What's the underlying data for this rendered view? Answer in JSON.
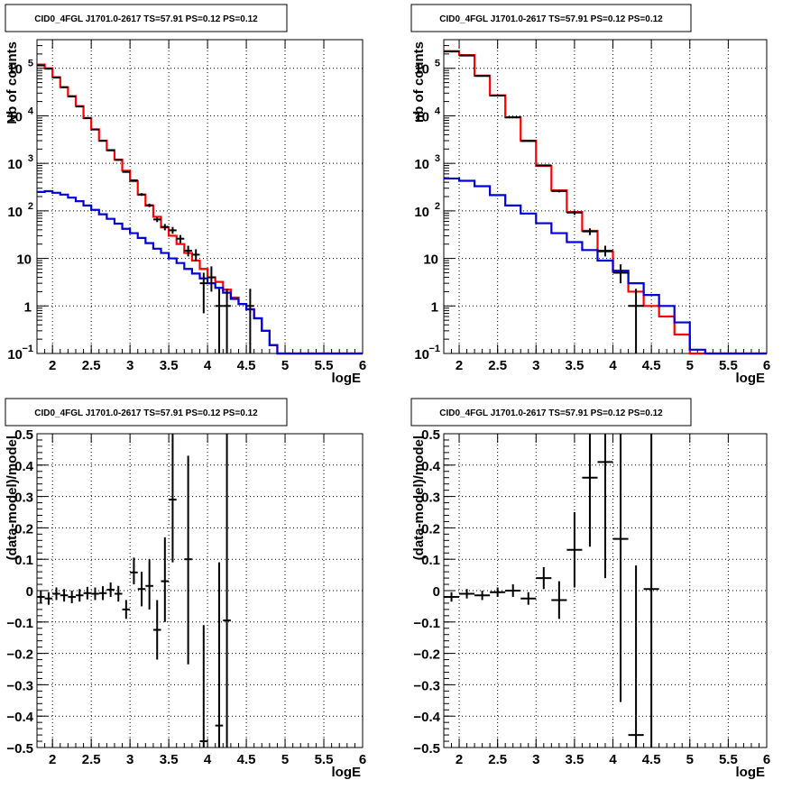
{
  "chart_data": [
    {
      "type": "line",
      "title": "CID0_4FGL J1701.0-2617 TS=57.91 PS=0.12 PS=0.12",
      "xlabel": "logE",
      "ylabel": "Nb of counts",
      "y_scale": "log",
      "xlim": [
        1.8,
        6.0
      ],
      "ylim": [
        0.1,
        400000
      ],
      "grid": true,
      "x_ticks": [
        "2",
        "2.5",
        "3",
        "3.5",
        "4",
        "4.5",
        "5",
        "5.5",
        "6"
      ],
      "y_ticks": [
        {
          "v": 0.1,
          "label": "10",
          "sup": "−1"
        },
        {
          "v": 1,
          "label": "1",
          "sup": ""
        },
        {
          "v": 10,
          "label": "10",
          "sup": ""
        },
        {
          "v": 100,
          "label": "10",
          "sup": "2"
        },
        {
          "v": 1000,
          "label": "10",
          "sup": "3"
        },
        {
          "v": 10000,
          "label": "10",
          "sup": "4"
        },
        {
          "v": 100000,
          "label": "10",
          "sup": "5"
        }
      ],
      "series": [
        {
          "color": "#ff0000",
          "style": "step",
          "edges": [
            1.8,
            1.9,
            2.0,
            2.1,
            2.2,
            2.3,
            2.4,
            2.5,
            2.6,
            2.7,
            2.8,
            2.9,
            3.0,
            3.1,
            3.2,
            3.3,
            3.4,
            3.5,
            3.6,
            3.7,
            3.8,
            3.9,
            4.0,
            4.1,
            4.2,
            4.3,
            4.4,
            4.5,
            4.6,
            4.7,
            4.8,
            4.9,
            5.0,
            5.1,
            5.2,
            5.3,
            5.4,
            5.5,
            5.6,
            5.7,
            5.8,
            5.9,
            6.0
          ],
          "values": [
            120000,
            100000,
            65000,
            40000,
            26000,
            16000,
            9000,
            5200,
            3000,
            1900,
            1200,
            700,
            420,
            220,
            130,
            75,
            45,
            30,
            20,
            13,
            9,
            6,
            4,
            3.2,
            2.2,
            1.5,
            1.1,
            0.85,
            0.55,
            0.3,
            0.15,
            0.1,
            0.1,
            0.1,
            0.1,
            0.1,
            0.1,
            0.1,
            0.1,
            0.1,
            0.1,
            0.1
          ]
        },
        {
          "color": "#0000d8",
          "style": "step",
          "edges": [
            1.8,
            1.9,
            2.0,
            2.1,
            2.2,
            2.3,
            2.4,
            2.5,
            2.6,
            2.7,
            2.8,
            2.9,
            3.0,
            3.1,
            3.2,
            3.3,
            3.4,
            3.5,
            3.6,
            3.7,
            3.8,
            3.9,
            4.0,
            4.1,
            4.2,
            4.3,
            4.4,
            4.5,
            4.6,
            4.7,
            4.8,
            4.9,
            5.0,
            5.1,
            5.2,
            5.3,
            5.4,
            5.5,
            5.6,
            5.7,
            5.8,
            5.9,
            6.0
          ],
          "values": [
            250,
            260,
            240,
            220,
            190,
            160,
            130,
            105,
            85,
            68,
            54,
            42,
            34,
            27,
            21,
            16,
            13,
            10,
            8,
            6,
            4.8,
            3.8,
            3,
            2.4,
            1.9,
            1.4,
            1.1,
            0.85,
            0.55,
            0.3,
            0.15,
            0.1,
            0.1,
            0.1,
            0.1,
            0.1,
            0.1,
            0.1,
            0.1,
            0.1,
            0.1,
            0.1
          ]
        }
      ],
      "points": [
        {
          "x": 1.85,
          "y": 115000,
          "ylo": 114500,
          "yhi": 115500,
          "xe": 0.05
        },
        {
          "x": 1.95,
          "y": 98000,
          "ylo": 97500,
          "yhi": 98500,
          "xe": 0.05
        },
        {
          "x": 2.05,
          "y": 64000,
          "ylo": 63600,
          "yhi": 64400,
          "xe": 0.05
        },
        {
          "x": 2.15,
          "y": 40000,
          "ylo": 39700,
          "yhi": 40300,
          "xe": 0.05
        },
        {
          "x": 2.25,
          "y": 25500,
          "ylo": 25300,
          "yhi": 25700,
          "xe": 0.05
        },
        {
          "x": 2.35,
          "y": 15700,
          "ylo": 15550,
          "yhi": 15850,
          "xe": 0.05
        },
        {
          "x": 2.45,
          "y": 8900,
          "ylo": 8800,
          "yhi": 9000,
          "xe": 0.05
        },
        {
          "x": 2.55,
          "y": 5150,
          "ylo": 5080,
          "yhi": 5220,
          "xe": 0.05
        },
        {
          "x": 2.65,
          "y": 2980,
          "ylo": 2930,
          "yhi": 3030,
          "xe": 0.05
        },
        {
          "x": 2.75,
          "y": 1880,
          "ylo": 1840,
          "yhi": 1920,
          "xe": 0.05
        },
        {
          "x": 2.85,
          "y": 1180,
          "ylo": 1150,
          "yhi": 1210,
          "xe": 0.05
        },
        {
          "x": 2.95,
          "y": 660,
          "ylo": 640,
          "yhi": 680,
          "xe": 0.05
        },
        {
          "x": 3.05,
          "y": 440,
          "ylo": 420,
          "yhi": 460,
          "xe": 0.05
        },
        {
          "x": 3.15,
          "y": 221,
          "ylo": 207,
          "yhi": 236,
          "xe": 0.05
        },
        {
          "x": 3.25,
          "y": 131,
          "ylo": 120,
          "yhi": 142,
          "xe": 0.05
        },
        {
          "x": 3.35,
          "y": 66,
          "ylo": 58,
          "yhi": 74,
          "xe": 0.05
        },
        {
          "x": 3.45,
          "y": 46,
          "ylo": 39,
          "yhi": 53,
          "xe": 0.05
        },
        {
          "x": 3.55,
          "y": 39,
          "ylo": 33,
          "yhi": 46,
          "xe": 0.05
        },
        {
          "x": 3.65,
          "y": 26,
          "ylo": 21,
          "yhi": 31,
          "xe": 0.05
        },
        {
          "x": 3.75,
          "y": 14.5,
          "ylo": 11,
          "yhi": 18.5,
          "xe": 0.05
        },
        {
          "x": 3.85,
          "y": 12,
          "ylo": 8.8,
          "yhi": 15.6,
          "xe": 0.05
        },
        {
          "x": 3.95,
          "y": 3,
          "ylo": 0.7,
          "yhi": 5,
          "xe": 0.05
        },
        {
          "x": 4.05,
          "y": 4,
          "ylo": 2,
          "yhi": 6.8,
          "xe": 0.05
        },
        {
          "x": 4.15,
          "y": 1,
          "ylo": 0.1,
          "yhi": 2.3,
          "xe": 0.05
        },
        {
          "x": 4.25,
          "y": 1,
          "ylo": 0.1,
          "yhi": 2.3,
          "xe": 0.05
        },
        {
          "x": 4.55,
          "y": 1,
          "ylo": 0.1,
          "yhi": 2.3,
          "xe": 0.05
        }
      ]
    },
    {
      "type": "line",
      "title": "CID0_4FGL J1701.0-2617 TS=57.91 PS=0.12 PS=0.12",
      "xlabel": "logE",
      "ylabel": "nb of counts",
      "y_scale": "log",
      "xlim": [
        1.8,
        6.0
      ],
      "ylim": [
        0.1,
        400000
      ],
      "grid": true,
      "x_ticks": [
        "2",
        "2.5",
        "3",
        "3.5",
        "4",
        "4.5",
        "5",
        "5.5",
        "6"
      ],
      "y_ticks": [
        {
          "v": 0.1,
          "label": "10",
          "sup": "−1"
        },
        {
          "v": 1,
          "label": "1",
          "sup": ""
        },
        {
          "v": 10,
          "label": "10",
          "sup": ""
        },
        {
          "v": 100,
          "label": "10",
          "sup": "2"
        },
        {
          "v": 1000,
          "label": "10",
          "sup": "3"
        },
        {
          "v": 10000,
          "label": "10",
          "sup": "4"
        },
        {
          "v": 100000,
          "label": "10",
          "sup": "5"
        }
      ],
      "series": [
        {
          "color": "#ff0000",
          "style": "step",
          "edges": [
            1.8,
            2.0,
            2.2,
            2.4,
            2.6,
            2.8,
            3.0,
            3.2,
            3.4,
            3.6,
            3.8,
            4.0,
            4.2,
            4.4,
            4.6,
            4.8,
            5.0,
            5.2,
            5.4,
            5.6,
            5.8,
            6.0
          ],
          "values": [
            230000,
            190000,
            70000,
            27000,
            9300,
            3000,
            880,
            270,
            95,
            38,
            14,
            5.2,
            2,
            1,
            0.6,
            0.25,
            0.1,
            0.1,
            0.1,
            0.1,
            0.1
          ]
        },
        {
          "color": "#0000d8",
          "style": "step",
          "edges": [
            1.8,
            2.0,
            2.2,
            2.4,
            2.6,
            2.8,
            3.0,
            3.2,
            3.4,
            3.6,
            3.8,
            4.0,
            4.2,
            4.4,
            4.6,
            4.8,
            5.0,
            5.2,
            5.4,
            5.6,
            5.8,
            6.0
          ],
          "values": [
            480,
            430,
            330,
            215,
            130,
            88,
            55,
            34,
            22,
            15,
            9,
            5.5,
            3,
            1.7,
            1,
            0.45,
            0.12,
            0.1,
            0.1,
            0.1,
            0.1
          ]
        }
      ],
      "points": [
        {
          "x": 1.9,
          "y": 225000,
          "ylo": 224000,
          "yhi": 226000,
          "xe": 0.1
        },
        {
          "x": 2.1,
          "y": 185000,
          "ylo": 184000,
          "yhi": 186000,
          "xe": 0.1
        },
        {
          "x": 2.3,
          "y": 69000,
          "ylo": 68500,
          "yhi": 69500,
          "xe": 0.1
        },
        {
          "x": 2.5,
          "y": 26600,
          "ylo": 26400,
          "yhi": 26800,
          "xe": 0.1
        },
        {
          "x": 2.7,
          "y": 9300,
          "ylo": 9200,
          "yhi": 9400,
          "xe": 0.1
        },
        {
          "x": 2.9,
          "y": 2950,
          "ylo": 2900,
          "yhi": 3000,
          "xe": 0.1
        },
        {
          "x": 3.1,
          "y": 910,
          "ylo": 880,
          "yhi": 940,
          "xe": 0.1
        },
        {
          "x": 3.3,
          "y": 262,
          "ylo": 246,
          "yhi": 278,
          "xe": 0.1
        },
        {
          "x": 3.5,
          "y": 92,
          "ylo": 82,
          "yhi": 102,
          "xe": 0.1
        },
        {
          "x": 3.7,
          "y": 37,
          "ylo": 31,
          "yhi": 43,
          "xe": 0.1
        },
        {
          "x": 3.9,
          "y": 14.5,
          "ylo": 11,
          "yhi": 18.5,
          "xe": 0.1
        },
        {
          "x": 4.1,
          "y": 5,
          "ylo": 3,
          "yhi": 7.5,
          "xe": 0.1
        },
        {
          "x": 4.3,
          "y": 1,
          "ylo": 0.1,
          "yhi": 2.3,
          "xe": 0.1
        }
      ]
    },
    {
      "type": "scatter",
      "title": "CID0_4FGL J1701.0-2617 TS=57.91 PS=0.12 PS=0.12",
      "xlabel": "logE",
      "ylabel": "(data-model)/model",
      "xlim": [
        1.8,
        6.0
      ],
      "ylim": [
        -0.5,
        0.5
      ],
      "grid": true,
      "x_ticks": [
        "2",
        "2.5",
        "3",
        "3.5",
        "4",
        "4.5",
        "5",
        "5.5",
        "6"
      ],
      "y_ticks": [
        "−0.5",
        "−0.4",
        "−0.3",
        "−0.2",
        "−0.1",
        "0",
        "0.1",
        "0.2",
        "0.3",
        "0.4",
        "0.5"
      ],
      "points": [
        {
          "x": 1.85,
          "y": -0.02,
          "ylo": -0.04,
          "yhi": 0.0,
          "xe": 0.05
        },
        {
          "x": 1.95,
          "y": -0.025,
          "ylo": -0.045,
          "yhi": -0.005,
          "xe": 0.05
        },
        {
          "x": 2.05,
          "y": -0.01,
          "ylo": -0.03,
          "yhi": 0.01,
          "xe": 0.05
        },
        {
          "x": 2.15,
          "y": -0.015,
          "ylo": -0.035,
          "yhi": 0.005,
          "xe": 0.05
        },
        {
          "x": 2.25,
          "y": -0.02,
          "ylo": -0.04,
          "yhi": 0.0,
          "xe": 0.05
        },
        {
          "x": 2.35,
          "y": -0.015,
          "ylo": -0.035,
          "yhi": 0.005,
          "xe": 0.05
        },
        {
          "x": 2.45,
          "y": -0.008,
          "ylo": -0.028,
          "yhi": 0.012,
          "xe": 0.05
        },
        {
          "x": 2.55,
          "y": -0.01,
          "ylo": -0.03,
          "yhi": 0.01,
          "xe": 0.05
        },
        {
          "x": 2.65,
          "y": -0.008,
          "ylo": -0.03,
          "yhi": 0.014,
          "xe": 0.05
        },
        {
          "x": 2.75,
          "y": 0.003,
          "ylo": -0.02,
          "yhi": 0.026,
          "xe": 0.05
        },
        {
          "x": 2.85,
          "y": -0.01,
          "ylo": -0.035,
          "yhi": 0.015,
          "xe": 0.05
        },
        {
          "x": 2.95,
          "y": -0.06,
          "ylo": -0.09,
          "yhi": -0.03,
          "xe": 0.05
        },
        {
          "x": 3.05,
          "y": 0.058,
          "ylo": 0.02,
          "yhi": 0.105,
          "xe": 0.05
        },
        {
          "x": 3.15,
          "y": 0.005,
          "ylo": -0.05,
          "yhi": 0.06,
          "xe": 0.05
        },
        {
          "x": 3.25,
          "y": 0.015,
          "ylo": -0.06,
          "yhi": 0.1,
          "xe": 0.05
        },
        {
          "x": 3.35,
          "y": -0.125,
          "ylo": -0.22,
          "yhi": -0.03,
          "xe": 0.05
        },
        {
          "x": 3.45,
          "y": 0.03,
          "ylo": -0.1,
          "yhi": 0.17,
          "xe": 0.05
        },
        {
          "x": 3.55,
          "y": 0.29,
          "ylo": 0.09,
          "yhi": 0.5,
          "xe": 0.05
        },
        {
          "x": 3.75,
          "y": 0.1,
          "ylo": -0.235,
          "yhi": 0.43,
          "xe": 0.05
        },
        {
          "x": 3.95,
          "y": -0.48,
          "ylo": -0.5,
          "yhi": -0.11,
          "xe": 0.05
        },
        {
          "x": 4.15,
          "y": -0.43,
          "ylo": -0.5,
          "yhi": 0.09,
          "xe": 0.05
        },
        {
          "x": 4.25,
          "y": -0.095,
          "ylo": -0.5,
          "yhi": 0.5,
          "xe": 0.05
        }
      ]
    },
    {
      "type": "scatter",
      "title": "CID0_4FGL J1701.0-2617 TS=57.91 PS=0.12 PS=0.12",
      "xlabel": "logE",
      "ylabel": "(data-model)/model",
      "xlim": [
        1.8,
        6.0
      ],
      "ylim": [
        -0.5,
        0.5
      ],
      "grid": true,
      "x_ticks": [
        "2",
        "2.5",
        "3",
        "3.5",
        "4",
        "4.5",
        "5",
        "5.5",
        "6"
      ],
      "y_ticks": [
        "−0.5",
        "−0.4",
        "−0.3",
        "−0.2",
        "−0.1",
        "0",
        "0.1",
        "0.2",
        "0.3",
        "0.4",
        "0.5"
      ],
      "points": [
        {
          "x": 1.9,
          "y": -0.02,
          "ylo": -0.035,
          "yhi": -0.005,
          "xe": 0.1
        },
        {
          "x": 2.1,
          "y": -0.01,
          "ylo": -0.025,
          "yhi": 0.005,
          "xe": 0.1
        },
        {
          "x": 2.3,
          "y": -0.015,
          "ylo": -0.03,
          "yhi": 0.0,
          "xe": 0.1
        },
        {
          "x": 2.5,
          "y": -0.005,
          "ylo": -0.02,
          "yhi": 0.01,
          "xe": 0.1
        },
        {
          "x": 2.7,
          "y": 0.0,
          "ylo": -0.02,
          "yhi": 0.02,
          "xe": 0.1
        },
        {
          "x": 2.9,
          "y": -0.025,
          "ylo": -0.045,
          "yhi": -0.005,
          "xe": 0.1
        },
        {
          "x": 3.1,
          "y": 0.04,
          "ylo": 0.005,
          "yhi": 0.075,
          "xe": 0.1
        },
        {
          "x": 3.3,
          "y": -0.03,
          "ylo": -0.09,
          "yhi": 0.03,
          "xe": 0.1
        },
        {
          "x": 3.5,
          "y": 0.13,
          "ylo": 0.01,
          "yhi": 0.25,
          "xe": 0.1
        },
        {
          "x": 3.7,
          "y": 0.36,
          "ylo": 0.14,
          "yhi": 0.5,
          "xe": 0.1
        },
        {
          "x": 3.9,
          "y": 0.41,
          "ylo": 0.04,
          "yhi": 0.5,
          "xe": 0.1
        },
        {
          "x": 4.1,
          "y": 0.165,
          "ylo": -0.355,
          "yhi": 0.5,
          "xe": 0.1
        },
        {
          "x": 4.3,
          "y": -0.46,
          "ylo": -0.5,
          "yhi": 0.08,
          "xe": 0.1
        },
        {
          "x": 4.5,
          "y": 0.005,
          "ylo": -0.5,
          "yhi": 0.5,
          "xe": 0.1
        }
      ]
    }
  ]
}
